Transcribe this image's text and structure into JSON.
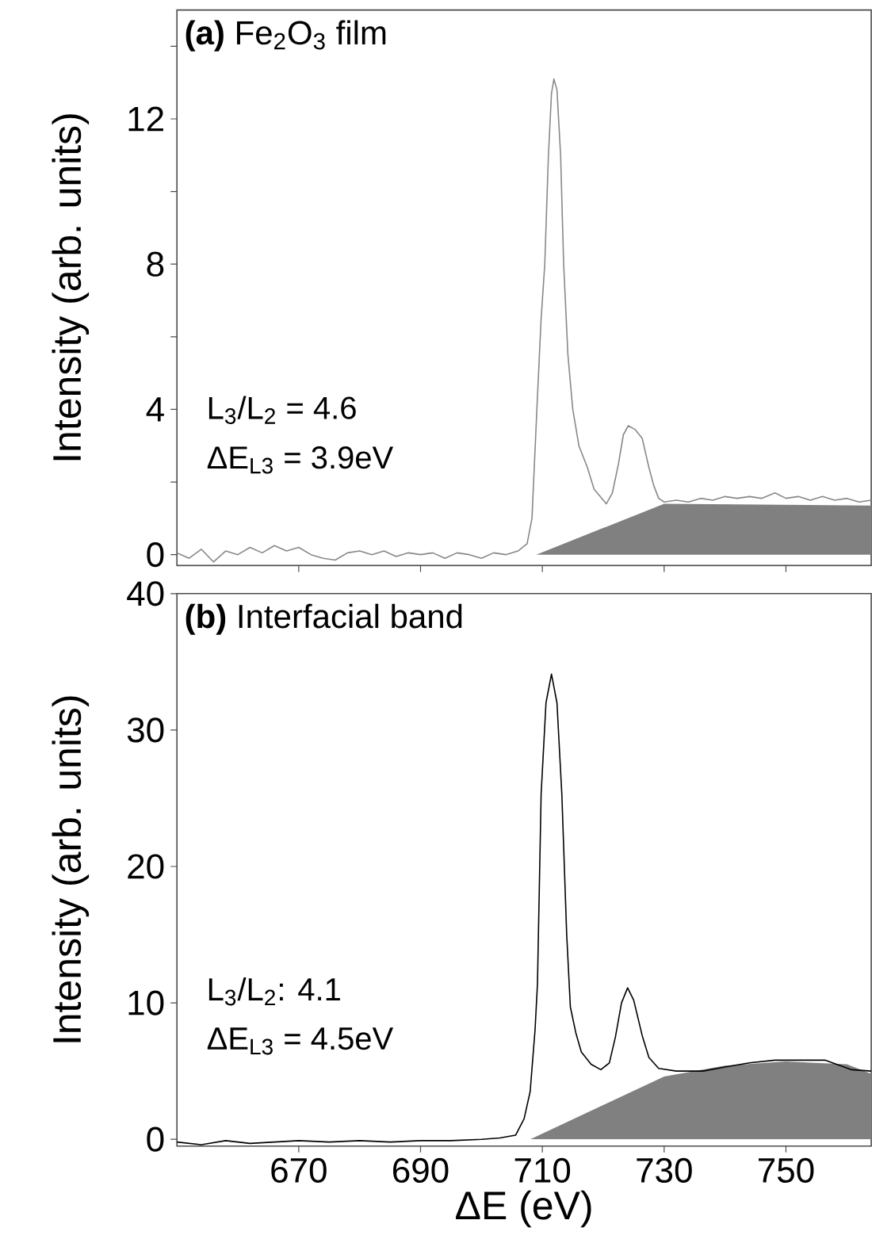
{
  "chart_data": [
    {
      "type": "line",
      "ylabel": "Intensity (arb. units)",
      "annotations": [
        "**(a)** Fe$_{2}$O$_{3}$ film",
        "L$_{3}$/L$_{2}$ = 4.6",
        "ΔE$_{L3}$ = 3.9eV"
      ],
      "xlim": [
        650,
        764
      ],
      "ylim": [
        -0.3,
        15
      ],
      "tick_labels": "y",
      "xticks": [
        {
          "value": 670,
          "label": null
        },
        {
          "value": 690,
          "label": null
        },
        {
          "value": 710,
          "label": null
        },
        {
          "value": 730,
          "label": null
        },
        {
          "value": 750,
          "label": null
        }
      ],
      "yticks": [
        0,
        {
          "value": 2,
          "label": null
        },
        4,
        {
          "value": 6,
          "label": null
        },
        8,
        {
          "value": 10,
          "label": null
        },
        12,
        {
          "value": 14,
          "label": null
        }
      ],
      "series": [
        {
          "type": "area",
          "color": "#808080",
          "x": [
            709,
            730,
            764
          ],
          "values": [
            0,
            1.4,
            1.35
          ]
        },
        {
          "color": "#888888",
          "x": [
            650,
            652,
            654,
            656,
            658,
            660,
            662,
            664,
            666,
            668,
            670,
            672,
            674,
            676,
            678,
            680,
            682,
            684,
            686,
            688,
            690,
            692,
            694,
            696,
            698,
            700,
            702,
            704,
            706,
            707.5,
            708.3,
            709.1,
            709.8,
            710.4,
            711.0,
            711.5,
            711.9,
            712.4,
            713.0,
            713.5,
            714.2,
            715.0,
            716,
            717.4,
            718.5,
            719.5,
            720.5,
            721.5,
            722.5,
            723.3,
            724.1,
            725.2,
            726.4,
            727.5,
            728.3,
            729.1,
            730,
            732,
            734,
            736,
            738,
            740,
            742,
            744,
            746,
            748.2,
            750,
            752,
            754,
            756,
            758,
            760,
            762,
            764
          ],
          "values": [
            0.05,
            -0.1,
            0.15,
            -0.2,
            0.1,
            0.0,
            0.2,
            0.05,
            0.25,
            0.1,
            0.2,
            0.0,
            -0.1,
            -0.15,
            0.05,
            0.1,
            0.0,
            0.1,
            -0.05,
            0.05,
            0.0,
            0.05,
            -0.1,
            0.05,
            0.0,
            -0.1,
            0.05,
            0.0,
            0.1,
            0.3,
            1.0,
            4,
            6.5,
            8,
            11,
            12.7,
            13.1,
            12.8,
            11,
            8,
            5.5,
            4,
            3.0,
            2.4,
            1.8,
            1.6,
            1.4,
            1.7,
            2.5,
            3.3,
            3.55,
            3.45,
            3.2,
            2.4,
            1.9,
            1.55,
            1.45,
            1.5,
            1.45,
            1.55,
            1.5,
            1.6,
            1.55,
            1.6,
            1.55,
            1.7,
            1.55,
            1.6,
            1.5,
            1.6,
            1.5,
            1.55,
            1.45,
            1.5
          ]
        }
      ]
    },
    {
      "type": "line",
      "ylabel": "Intensity (arb. units)",
      "xlabel": "ΔE (eV)",
      "annotations": [
        "**(b)** Interfacial band",
        "L$_{3}$/L$_{2}$: 4.1",
        "ΔE$_{L3}$ = 4.5eV"
      ],
      "xlim": [
        650,
        764
      ],
      "ylim": [
        -0.5,
        40
      ],
      "xticks": [
        670,
        690,
        710,
        730,
        750
      ],
      "yticks": [
        0,
        10,
        20,
        30,
        40
      ],
      "series": [
        {
          "type": "area",
          "color": "#808080",
          "x": [
            708,
            730,
            740,
            750,
            760,
            764
          ],
          "values": [
            0,
            4.6,
            5.4,
            5.7,
            5.5,
            4.8
          ]
        },
        {
          "color": "#000000",
          "x": [
            650,
            654,
            658,
            662,
            666,
            670,
            675,
            680,
            685,
            690,
            695,
            700,
            703,
            705.6,
            707,
            708,
            708.8,
            709.2,
            709.8,
            710.6,
            711.5,
            712.4,
            713.2,
            714,
            714.6,
            715.5,
            716.4,
            718,
            719.6,
            721,
            722,
            723,
            724,
            725,
            726.4,
            727.5,
            729.1,
            732,
            736.4,
            740,
            744,
            748.2,
            752,
            756.4,
            760.8,
            764
          ],
          "values": [
            -0.2,
            -0.4,
            -0.1,
            -0.3,
            -0.2,
            -0.1,
            -0.2,
            -0.1,
            -0.2,
            -0.1,
            -0.1,
            0.0,
            0.1,
            0.3,
            1.5,
            3.5,
            8,
            11.4,
            25.3,
            32,
            34.1,
            32,
            25.3,
            15,
            9.7,
            7.8,
            6.4,
            5.5,
            5.1,
            5.6,
            7.5,
            10,
            11.1,
            10.2,
            7.6,
            6.0,
            5.2,
            5.0,
            5.0,
            5.3,
            5.6,
            5.8,
            5.8,
            5.8,
            5.1,
            5.0
          ]
        }
      ]
    }
  ]
}
